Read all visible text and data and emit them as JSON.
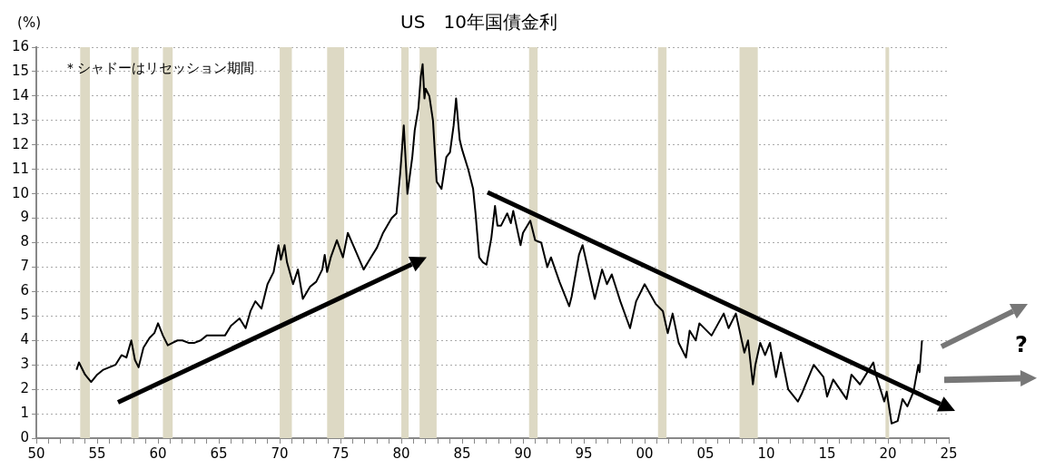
{
  "chart_data": {
    "type": "line",
    "title": "US　10年国債金利",
    "ylabel": "(%)",
    "annotations": [
      "＊シャドーはリセッション期間",
      "?"
    ],
    "xlim": [
      1950,
      2025
    ],
    "xticks": [
      {
        "value": 1950,
        "label": "50"
      },
      {
        "value": 1951,
        "label": null
      },
      {
        "value": 1952,
        "label": null
      },
      {
        "value": 1953,
        "label": null
      },
      {
        "value": 1954,
        "label": null
      },
      {
        "value": 1955,
        "label": "55"
      },
      {
        "value": 1956,
        "label": null
      },
      {
        "value": 1957,
        "label": null
      },
      {
        "value": 1958,
        "label": null
      },
      {
        "value": 1959,
        "label": null
      },
      {
        "value": 1960,
        "label": "60"
      },
      {
        "value": 1961,
        "label": null
      },
      {
        "value": 1962,
        "label": null
      },
      {
        "value": 1963,
        "label": null
      },
      {
        "value": 1964,
        "label": null
      },
      {
        "value": 1965,
        "label": "65"
      },
      {
        "value": 1966,
        "label": null
      },
      {
        "value": 1967,
        "label": null
      },
      {
        "value": 1968,
        "label": null
      },
      {
        "value": 1969,
        "label": null
      },
      {
        "value": 1970,
        "label": "70"
      },
      {
        "value": 1971,
        "label": null
      },
      {
        "value": 1972,
        "label": null
      },
      {
        "value": 1973,
        "label": null
      },
      {
        "value": 1974,
        "label": null
      },
      {
        "value": 1975,
        "label": "75"
      },
      {
        "value": 1976,
        "label": null
      },
      {
        "value": 1977,
        "label": null
      },
      {
        "value": 1978,
        "label": null
      },
      {
        "value": 1979,
        "label": null
      },
      {
        "value": 1980,
        "label": "80"
      },
      {
        "value": 1981,
        "label": null
      },
      {
        "value": 1982,
        "label": null
      },
      {
        "value": 1983,
        "label": null
      },
      {
        "value": 1984,
        "label": null
      },
      {
        "value": 1985,
        "label": "85"
      },
      {
        "value": 1986,
        "label": null
      },
      {
        "value": 1987,
        "label": null
      },
      {
        "value": 1988,
        "label": null
      },
      {
        "value": 1989,
        "label": null
      },
      {
        "value": 1990,
        "label": "90"
      },
      {
        "value": 1991,
        "label": null
      },
      {
        "value": 1992,
        "label": null
      },
      {
        "value": 1993,
        "label": null
      },
      {
        "value": 1994,
        "label": null
      },
      {
        "value": 1995,
        "label": "95"
      },
      {
        "value": 1996,
        "label": null
      },
      {
        "value": 1997,
        "label": null
      },
      {
        "value": 1998,
        "label": null
      },
      {
        "value": 1999,
        "label": null
      },
      {
        "value": 2000,
        "label": "00"
      },
      {
        "value": 2001,
        "label": null
      },
      {
        "value": 2002,
        "label": null
      },
      {
        "value": 2003,
        "label": null
      },
      {
        "value": 2004,
        "label": null
      },
      {
        "value": 2005,
        "label": "05"
      },
      {
        "value": 2006,
        "label": null
      },
      {
        "value": 2007,
        "label": null
      },
      {
        "value": 2008,
        "label": null
      },
      {
        "value": 2009,
        "label": null
      },
      {
        "value": 2010,
        "label": "10"
      },
      {
        "value": 2011,
        "label": null
      },
      {
        "value": 2012,
        "label": null
      },
      {
        "value": 2013,
        "label": null
      },
      {
        "value": 2014,
        "label": null
      },
      {
        "value": 2015,
        "label": "15"
      },
      {
        "value": 2016,
        "label": null
      },
      {
        "value": 2017,
        "label": null
      },
      {
        "value": 2018,
        "label": null
      },
      {
        "value": 2019,
        "label": null
      },
      {
        "value": 2020,
        "label": "20"
      },
      {
        "value": 2021,
        "label": null
      },
      {
        "value": 2022,
        "label": null
      },
      {
        "value": 2023,
        "label": null
      },
      {
        "value": 2024,
        "label": null
      },
      {
        "value": 2025,
        "label": "25"
      }
    ],
    "ylim": [
      0,
      16
    ],
    "yticks": [
      0,
      1,
      2,
      3,
      4,
      5,
      6,
      7,
      8,
      9,
      10,
      11,
      12,
      13,
      14,
      15,
      16
    ],
    "grid": "y",
    "legend": false,
    "marker": "none",
    "line_style": "solid",
    "bands": [
      {
        "axis": "x",
        "from": 1953.6,
        "to": 1954.4,
        "color": "#ddd9c4"
      },
      {
        "axis": "x",
        "from": 1957.8,
        "to": 1958.4,
        "color": "#ddd9c4"
      },
      {
        "axis": "x",
        "from": 1960.4,
        "to": 1961.2,
        "color": "#ddd9c4"
      },
      {
        "axis": "x",
        "from": 1970.0,
        "to": 1971.0,
        "color": "#ddd9c4"
      },
      {
        "axis": "x",
        "from": 1973.9,
        "to": 1975.3,
        "color": "#ddd9c4"
      },
      {
        "axis": "x",
        "from": 1980.0,
        "to": 1980.6,
        "color": "#ddd9c4"
      },
      {
        "axis": "x",
        "from": 1981.5,
        "to": 1982.9,
        "color": "#ddd9c4"
      },
      {
        "axis": "x",
        "from": 1990.5,
        "to": 1991.2,
        "color": "#ddd9c4"
      },
      {
        "axis": "x",
        "from": 2001.1,
        "to": 2001.8,
        "color": "#ddd9c4"
      },
      {
        "axis": "x",
        "from": 2007.8,
        "to": 2009.3,
        "color": "#ddd9c4"
      },
      {
        "axis": "x",
        "from": 2019.8,
        "to": 2020.1,
        "color": "#ddd9c4"
      }
    ],
    "series": [
      {
        "color": "#000000",
        "x": [
          1953.3,
          1953.5,
          1954.0,
          1954.5,
          1955.0,
          1955.5,
          1956.0,
          1956.5,
          1957.0,
          1957.4,
          1957.8,
          1958.1,
          1958.4,
          1958.8,
          1959.3,
          1959.7,
          1960.0,
          1960.4,
          1960.8,
          1961.2,
          1961.6,
          1962.0,
          1962.5,
          1963.0,
          1963.5,
          1964.0,
          1964.5,
          1965.0,
          1965.5,
          1966.0,
          1966.7,
          1967.2,
          1967.6,
          1968.0,
          1968.5,
          1969.0,
          1969.5,
          1969.9,
          1970.1,
          1970.4,
          1970.6,
          1971.1,
          1971.5,
          1971.9,
          1972.5,
          1973.0,
          1973.5,
          1973.7,
          1973.9,
          1974.2,
          1974.7,
          1975.2,
          1975.6,
          1976.3,
          1976.9,
          1977.5,
          1978.0,
          1978.5,
          1979.2,
          1979.6,
          1979.9,
          1980.2,
          1980.5,
          1980.9,
          1981.1,
          1981.4,
          1981.6,
          1981.75,
          1981.9,
          1982.0,
          1982.3,
          1982.6,
          1982.9,
          1983.3,
          1983.7,
          1984.0,
          1984.3,
          1984.5,
          1984.8,
          1985.0,
          1985.5,
          1985.9,
          1986.1,
          1986.4,
          1986.7,
          1987.0,
          1987.4,
          1987.7,
          1987.9,
          1988.2,
          1988.7,
          1989.0,
          1989.2,
          1989.8,
          1990.0,
          1990.6,
          1991.0,
          1991.5,
          1992.0,
          1992.3,
          1993.0,
          1993.8,
          1994.0,
          1994.6,
          1994.9,
          1995.4,
          1995.9,
          1996.5,
          1996.9,
          1997.3,
          1998.0,
          1998.8,
          1999.3,
          2000.0,
          2000.9,
          2001.5,
          2001.9,
          2002.3,
          2002.8,
          2003.4,
          2003.7,
          2004.2,
          2004.5,
          2005.5,
          2006.5,
          2006.9,
          2007.5,
          2008.2,
          2008.5,
          2008.9,
          2009.1,
          2009.5,
          2009.9,
          2010.3,
          2010.8,
          2011.2,
          2011.8,
          2012.6,
          2012.9,
          2013.9,
          2014.7,
          2015.0,
          2015.5,
          2016.6,
          2017.0,
          2017.7,
          2018.8,
          2019.0,
          2019.7,
          2019.9,
          2020.3,
          2020.8,
          2021.2,
          2021.6,
          2022.1,
          2022.5,
          2022.6,
          2022.8
        ],
        "values": [
          2.8,
          3.1,
          2.6,
          2.3,
          2.6,
          2.8,
          2.9,
          3.0,
          3.4,
          3.3,
          4.0,
          3.2,
          2.9,
          3.7,
          4.1,
          4.3,
          4.7,
          4.2,
          3.8,
          3.9,
          4.0,
          4.0,
          3.9,
          3.9,
          4.0,
          4.2,
          4.2,
          4.2,
          4.2,
          4.6,
          4.9,
          4.5,
          5.2,
          5.6,
          5.3,
          6.3,
          6.8,
          7.9,
          7.3,
          7.9,
          7.2,
          6.3,
          6.9,
          5.7,
          6.2,
          6.4,
          6.9,
          7.5,
          6.8,
          7.4,
          8.1,
          7.4,
          8.4,
          7.6,
          6.9,
          7.4,
          7.8,
          8.4,
          9.0,
          9.2,
          10.8,
          12.8,
          10.0,
          11.5,
          12.6,
          13.5,
          14.8,
          15.3,
          13.9,
          14.3,
          14.0,
          13.0,
          10.5,
          10.2,
          11.5,
          11.7,
          12.8,
          13.9,
          12.2,
          11.8,
          11.0,
          10.2,
          9.2,
          7.4,
          7.2,
          7.1,
          8.2,
          9.5,
          8.7,
          8.7,
          9.2,
          8.8,
          9.3,
          7.9,
          8.4,
          8.9,
          8.1,
          8.0,
          7.0,
          7.4,
          6.4,
          5.4,
          5.8,
          7.5,
          7.9,
          6.8,
          5.7,
          6.9,
          6.3,
          6.7,
          5.6,
          4.5,
          5.6,
          6.3,
          5.5,
          5.2,
          4.3,
          5.1,
          3.9,
          3.3,
          4.4,
          4.0,
          4.7,
          4.2,
          5.1,
          4.5,
          5.1,
          3.5,
          4.0,
          2.2,
          3.0,
          3.9,
          3.4,
          3.9,
          2.5,
          3.5,
          2.0,
          1.5,
          1.8,
          3.0,
          2.5,
          1.7,
          2.4,
          1.6,
          2.6,
          2.2,
          3.1,
          2.6,
          1.5,
          1.9,
          0.6,
          0.7,
          1.6,
          1.3,
          1.9,
          3.0,
          2.7,
          4.0
        ]
      }
    ]
  }
}
